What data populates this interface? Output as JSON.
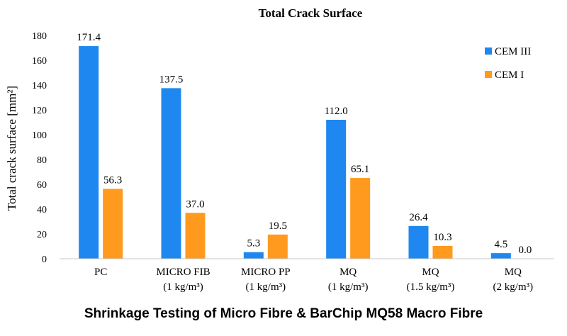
{
  "chart_data": {
    "type": "bar",
    "title": "Total Crack Surface",
    "ylabel": "Total crack surface [mm²]",
    "ylim": [
      0,
      180
    ],
    "yticks": [
      0,
      20,
      40,
      60,
      80,
      100,
      120,
      140,
      160,
      180
    ],
    "grid": false,
    "legend_position": "top-right",
    "categories": [
      {
        "line1": "PC",
        "line2": ""
      },
      {
        "line1": "MICRO FIB",
        "line2": "(1 kg/m³)"
      },
      {
        "line1": "MICRO PP",
        "line2": "(1 kg/m³)"
      },
      {
        "line1": "MQ",
        "line2": "(1 kg/m³)"
      },
      {
        "line1": "MQ",
        "line2": "(1.5 kg/m³)"
      },
      {
        "line1": "MQ",
        "line2": "(2 kg/m³)"
      }
    ],
    "series": [
      {
        "name": "CEM III",
        "color": "#1e88f0",
        "values": [
          171.4,
          137.5,
          5.3,
          112.0,
          26.4,
          4.5
        ],
        "labels": [
          "171.4",
          "137.5",
          "5.3",
          "112.0",
          "26.4",
          "4.5"
        ]
      },
      {
        "name": "CEM I",
        "color": "#ff9a1f",
        "values": [
          56.3,
          37.0,
          19.5,
          65.1,
          10.3,
          0.0
        ],
        "labels": [
          "56.3",
          "37.0",
          "19.5",
          "65.1",
          "10.3",
          "0.0"
        ]
      }
    ]
  },
  "caption": "Shrinkage Testing of Micro Fibre & BarChip MQ58 Macro Fibre"
}
